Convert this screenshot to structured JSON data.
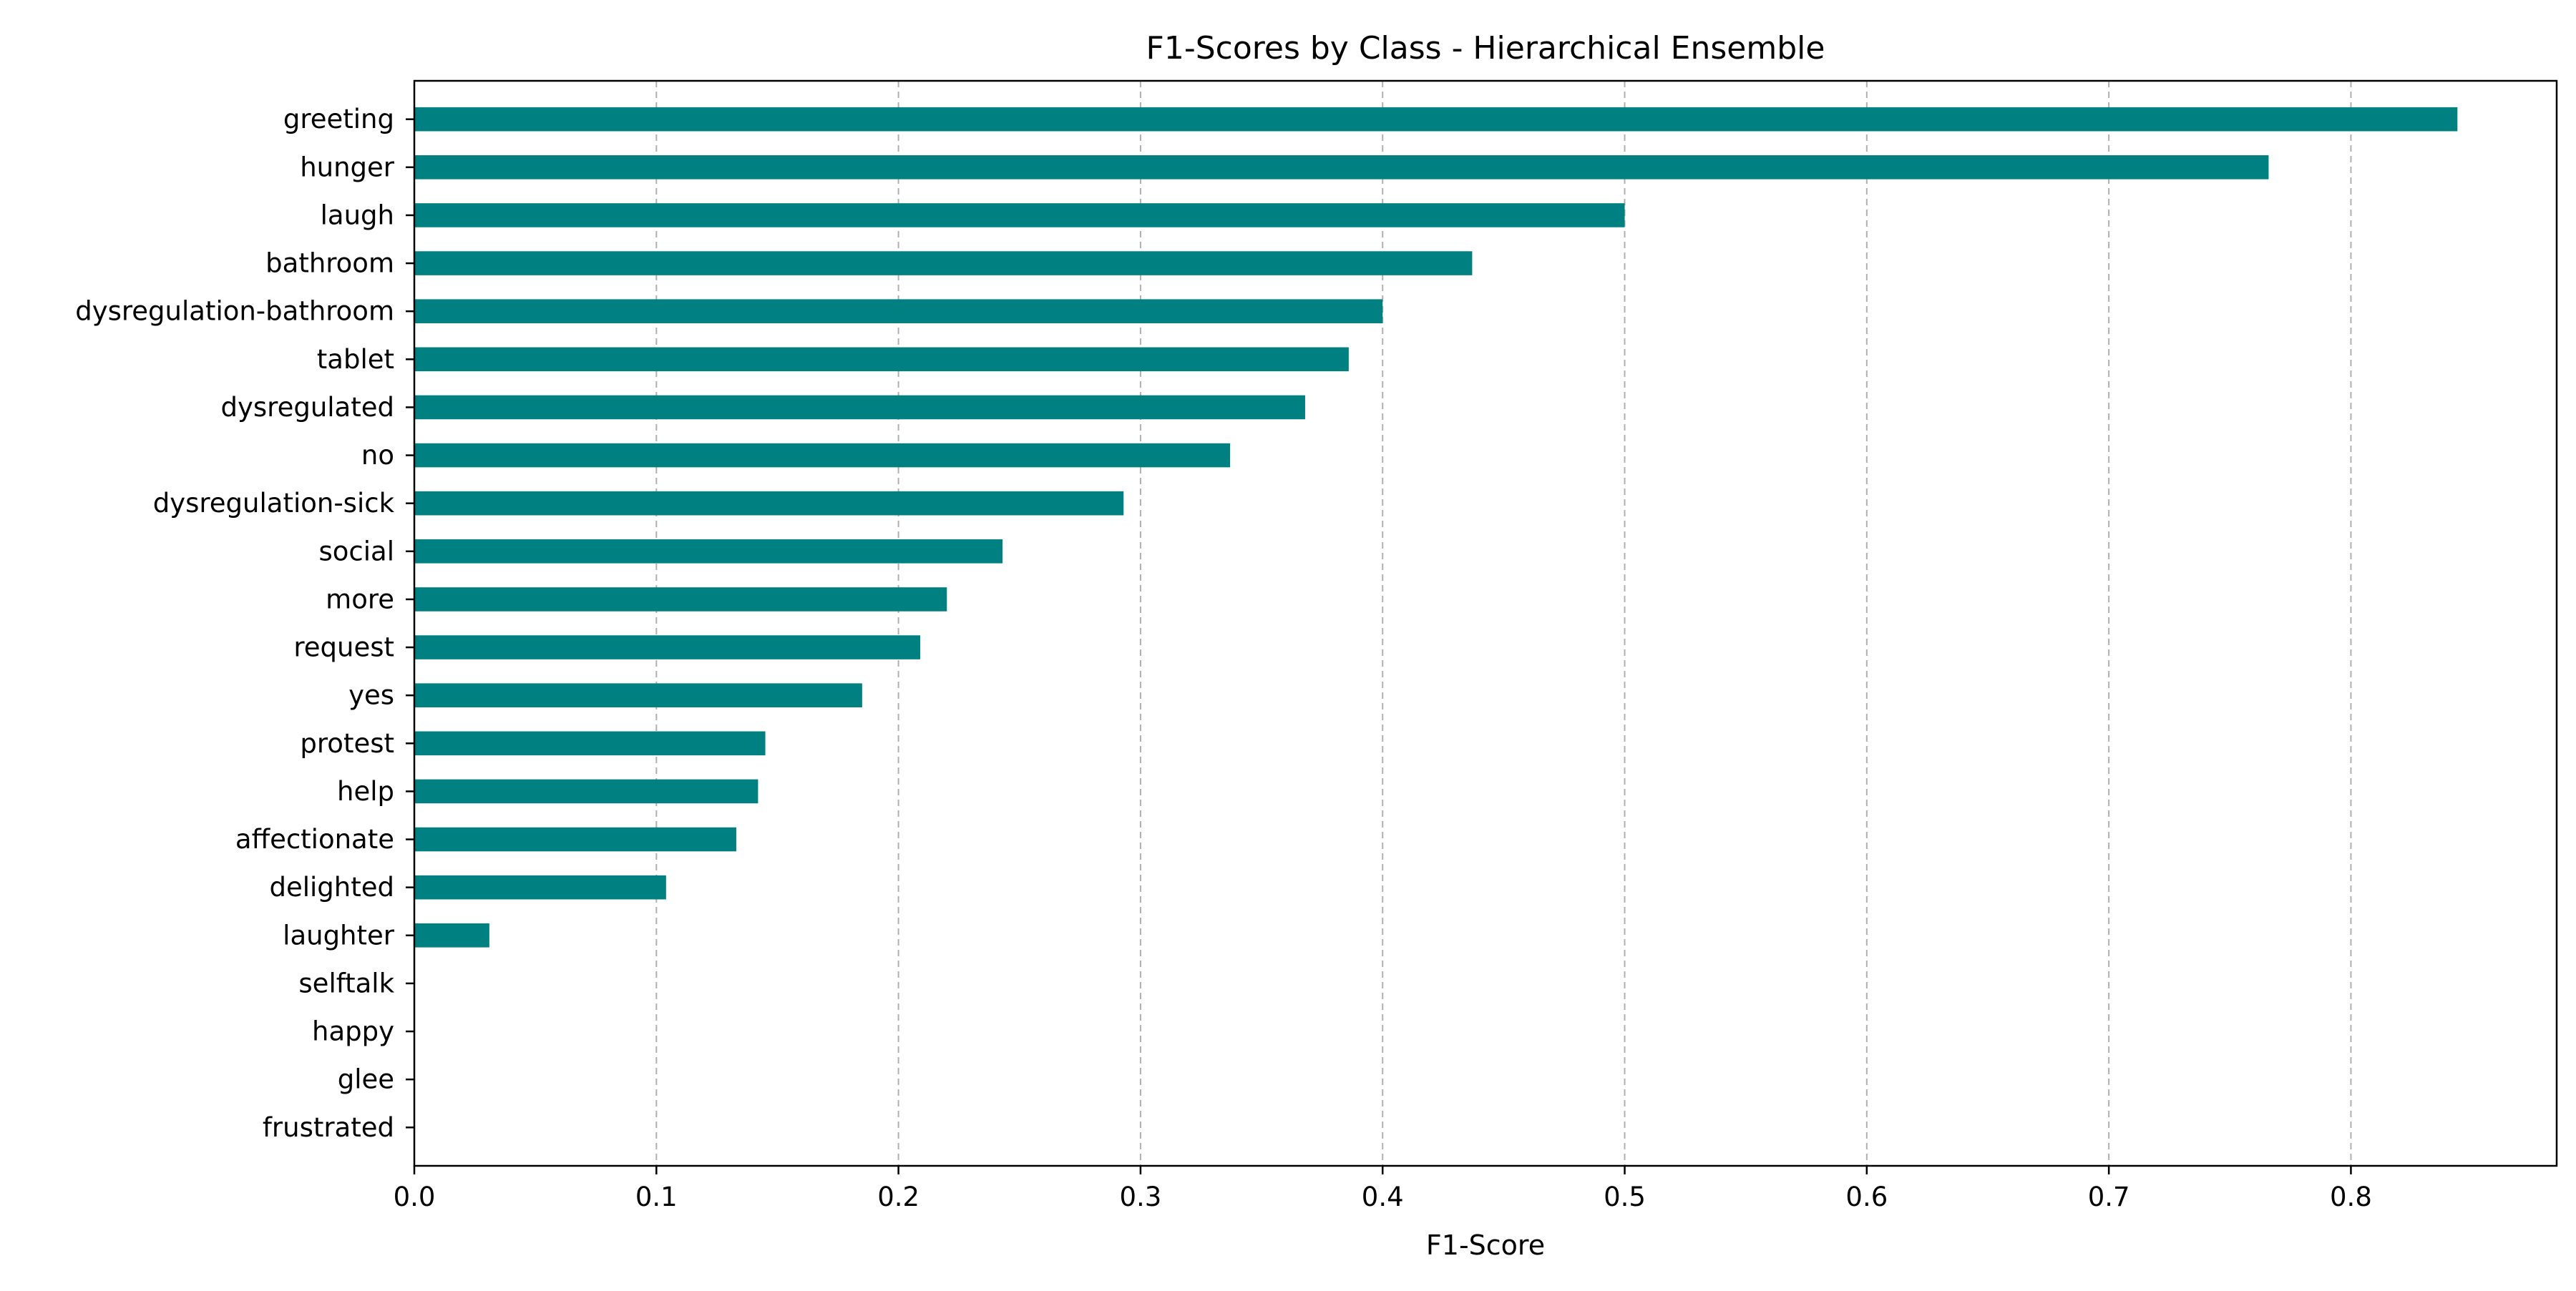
{
  "chart_data": {
    "type": "bar",
    "orientation": "horizontal",
    "title": "F1-Scores by Class - Hierarchical Ensemble",
    "xlabel": "F1-Score",
    "ylabel": "",
    "xlim": [
      0,
      0.885
    ],
    "xticks": [
      "0.0",
      "0.1",
      "0.2",
      "0.3",
      "0.4",
      "0.5",
      "0.6",
      "0.7",
      "0.8"
    ],
    "grid": "x-dashed",
    "bar_color": "#008080",
    "categories": [
      "greeting",
      "hunger",
      "laugh",
      "bathroom",
      "dysregulation-bathroom",
      "tablet",
      "dysregulated",
      "no",
      "dysregulation-sick",
      "social",
      "more",
      "request",
      "yes",
      "protest",
      "help",
      "affectionate",
      "delighted",
      "laughter",
      "selftalk",
      "happy",
      "glee",
      "frustrated"
    ],
    "values": [
      0.844,
      0.766,
      0.5,
      0.437,
      0.4,
      0.386,
      0.368,
      0.337,
      0.293,
      0.243,
      0.22,
      0.209,
      0.185,
      0.145,
      0.142,
      0.133,
      0.104,
      0.031,
      0,
      0,
      0,
      0
    ]
  }
}
